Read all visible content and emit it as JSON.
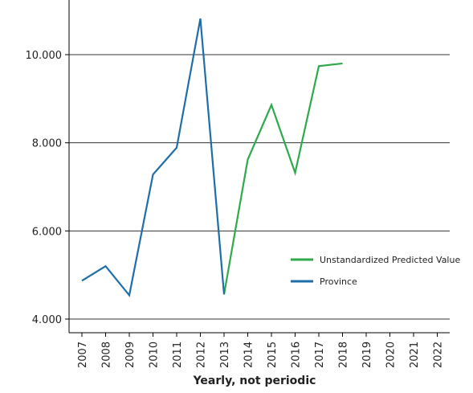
{
  "chart_data": {
    "type": "line",
    "title": "",
    "xlabel": "Yearly, not periodic",
    "ylabel": "",
    "x": [
      "2007",
      "2008",
      "2009",
      "2010",
      "2011",
      "2012",
      "2013",
      "2014",
      "2015",
      "2016",
      "2017",
      "2018",
      "2019",
      "2020",
      "2021",
      "2022"
    ],
    "ylim": [
      3800,
      11200
    ],
    "yticks": [
      4000,
      6000,
      8000,
      10000
    ],
    "ytick_labels": [
      "4.000",
      "6.000",
      "8.000",
      "10.000"
    ],
    "grid": "horizontal",
    "legend_position": "right-middle",
    "series": [
      {
        "name": "Unstandardized Predicted Value",
        "color": "#2eaa4a",
        "values": [
          null,
          null,
          null,
          null,
          null,
          null,
          4560,
          7620,
          8860,
          7320,
          9740,
          9800,
          null,
          null,
          null,
          null
        ]
      },
      {
        "name": "Province",
        "color": "#1f6ea8",
        "values": [
          4870,
          5200,
          4540,
          7280,
          7890,
          10820,
          4560,
          null,
          null,
          null,
          null,
          null,
          null,
          null,
          null,
          null
        ]
      }
    ]
  }
}
